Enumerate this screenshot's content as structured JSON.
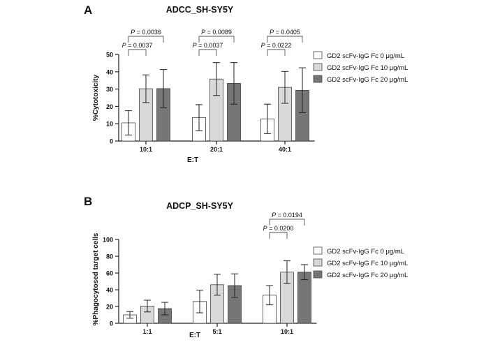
{
  "panels": [
    {
      "letter": "A",
      "chart_data": {
        "type": "bar",
        "title": "ADCC_SH-SY5Y",
        "xlabel": "E:T",
        "ylabel": "%Cytotoxicity",
        "ylim": [
          0,
          50
        ],
        "yticks": [
          0,
          10,
          20,
          30,
          40,
          50
        ],
        "categories": [
          "10:1",
          "20:1",
          "40:1"
        ],
        "series": [
          {
            "name": "GD2 scFv-IgG Fc 0 μg/mL",
            "color": "#ffffff",
            "values": [
              10.5,
              13.5,
              12.8
            ],
            "errors": [
              7.0,
              7.5,
              8.5
            ]
          },
          {
            "name": "GD2 scFv-IgG Fc 10 μg/mL",
            "color": "#d9d9d9",
            "values": [
              30.2,
              35.8,
              31.0
            ],
            "errors": [
              8.0,
              9.5,
              9.2
            ]
          },
          {
            "name": "GD2 scFv-IgG Fc 20 μg/mL",
            "color": "#767676",
            "values": [
              30.3,
              33.3,
              29.3
            ],
            "errors": [
              11.0,
              12.0,
              13.0
            ]
          }
        ],
        "annotations": [
          {
            "category": 0,
            "from": 0,
            "to": 2,
            "text": "P = 0.0036"
          },
          {
            "category": 0,
            "from": 0,
            "to": 1,
            "text": "P = 0.0037"
          },
          {
            "category": 1,
            "from": 0,
            "to": 2,
            "text": "P = 0.0089"
          },
          {
            "category": 1,
            "from": 0,
            "to": 1,
            "text": "P = 0.0037"
          },
          {
            "category": 2,
            "from": 0,
            "to": 2,
            "text": "P = 0.0405"
          },
          {
            "category": 2,
            "from": 0,
            "to": 1,
            "text": "P = 0.0222"
          }
        ],
        "legend": "right"
      }
    },
    {
      "letter": "B",
      "chart_data": {
        "type": "bar",
        "title": "ADCP_SH-SY5Y",
        "xlabel": "E:T",
        "ylabel": "%Phagocytosed target cells",
        "ylim": [
          0,
          100
        ],
        "yticks": [
          0,
          20,
          40,
          60,
          80,
          100
        ],
        "categories": [
          "1:1",
          "5:1",
          "10:1"
        ],
        "series": [
          {
            "name": "GD2 scFv-IgG Fc 0 μg/mL",
            "color": "#ffffff",
            "values": [
              10.0,
              26.0,
              33.5
            ],
            "errors": [
              4.0,
              13.5,
              11.5
            ]
          },
          {
            "name": "GD2 scFv-IgG Fc 10 μg/mL",
            "color": "#d9d9d9",
            "values": [
              20.5,
              46.0,
              61.0
            ],
            "errors": [
              7.0,
              12.5,
              13.5
            ]
          },
          {
            "name": "GD2 scFv-IgG Fc 20 μg/mL",
            "color": "#767676",
            "values": [
              17.5,
              45.0,
              61.0
            ],
            "errors": [
              7.5,
              14.0,
              9.0
            ]
          }
        ],
        "annotations": [
          {
            "category": 2,
            "from": 0,
            "to": 2,
            "text": "P = 0.0194"
          },
          {
            "category": 2,
            "from": 0,
            "to": 1,
            "text": "P = 0.0200"
          }
        ],
        "legend": "right"
      }
    }
  ]
}
